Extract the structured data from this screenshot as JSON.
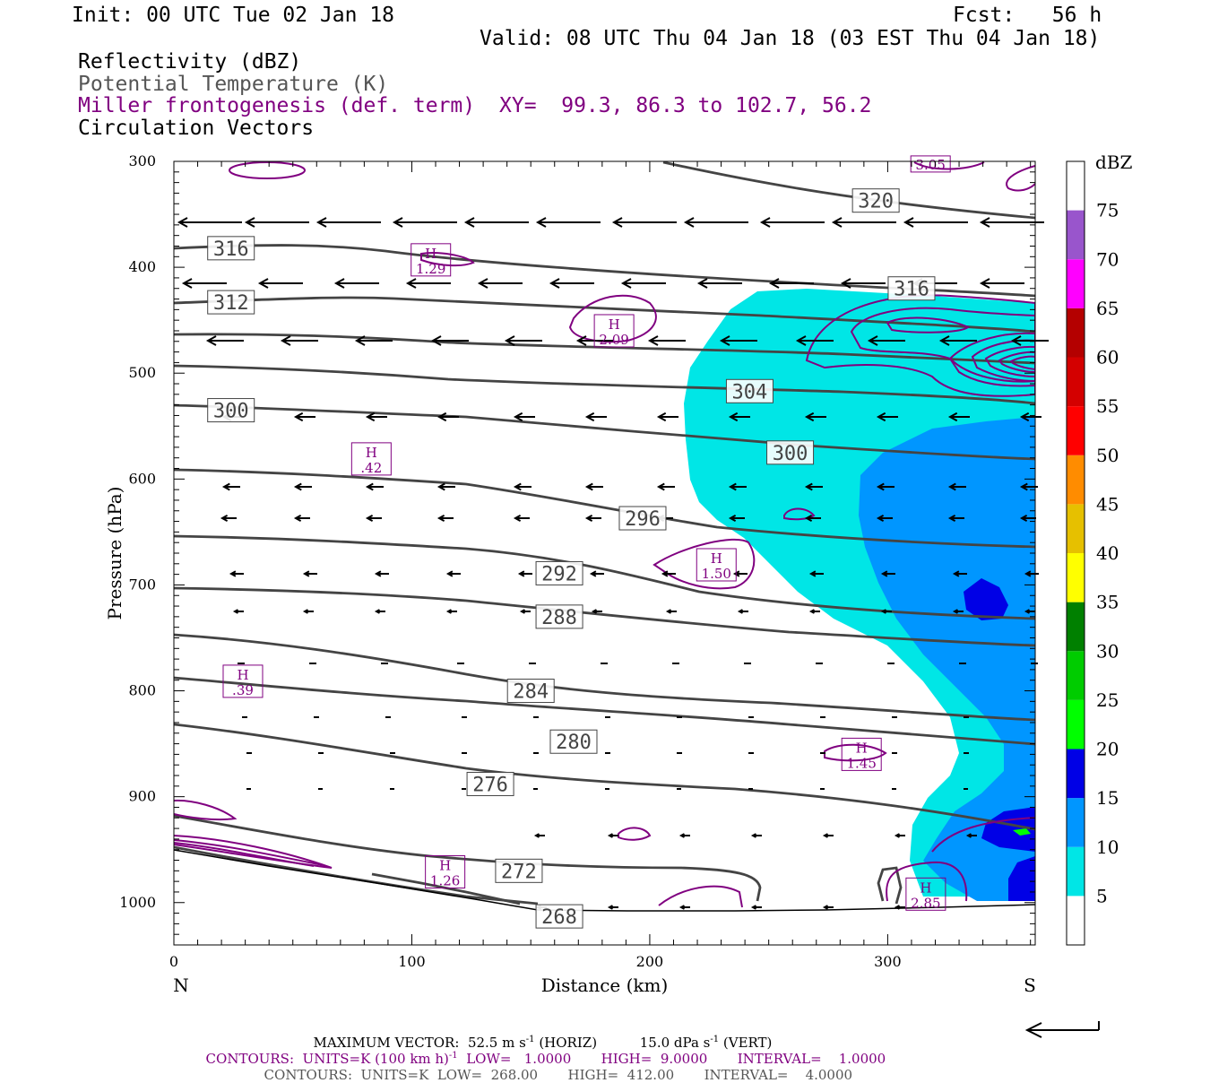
{
  "header": {
    "init": "Init: 00 UTC Tue 02 Jan 18",
    "fcst": "Fcst:   56 h",
    "valid": "Valid: 08 UTC Thu 04 Jan 18 (03 EST Thu 04 Jan 18)",
    "fields": [
      {
        "text": "Reflectivity (dBZ)",
        "color": "#000000"
      },
      {
        "text": "Potential Temperature (K)",
        "color": "#555555"
      },
      {
        "text": "Miller frontogenesis (def. term)",
        "color": "#800080"
      },
      {
        "text": "Circulation Vectors",
        "color": "#000000"
      }
    ],
    "xy": "XY=  99.3, 86.3 to 102.7, 56.2"
  },
  "chart_data": {
    "type": "cross-section",
    "xlabel": "Distance (km)",
    "ylabel": "Pressure (hPa)",
    "xlim": [
      0,
      362
    ],
    "ylim": [
      1040,
      300
    ],
    "xticks": [
      0,
      100,
      200,
      300
    ],
    "yticks": [
      300,
      400,
      500,
      600,
      700,
      800,
      900,
      1000
    ],
    "x_endpoints": {
      "left": "N",
      "right": "S"
    },
    "colorbar": {
      "units": "dBZ",
      "levels": [
        5,
        10,
        15,
        20,
        25,
        30,
        35,
        40,
        45,
        50,
        55,
        60,
        65,
        70,
        75
      ],
      "colors": [
        "#ffffff",
        "#00e6e6",
        "#0096ff",
        "#0000e6",
        "#00ff00",
        "#00cc00",
        "#008000",
        "#ffff00",
        "#e6c000",
        "#ff8c00",
        "#ff0000",
        "#d40000",
        "#b40000",
        "#ff00ff",
        "#9955cc"
      ]
    },
    "theta_labels": [
      {
        "value": "320",
        "x": 295,
        "p": 337
      },
      {
        "value": "316",
        "x": 24,
        "p": 382
      },
      {
        "value": "316",
        "x": 310,
        "p": 420
      },
      {
        "value": "312",
        "x": 24,
        "p": 433
      },
      {
        "value": "304",
        "x": 242,
        "p": 517
      },
      {
        "value": "300",
        "x": 24,
        "p": 535
      },
      {
        "value": "300",
        "x": 259,
        "p": 575
      },
      {
        "value": "296",
        "x": 197,
        "p": 637
      },
      {
        "value": "292",
        "x": 162,
        "p": 689
      },
      {
        "value": "288",
        "x": 162,
        "p": 730
      },
      {
        "value": "284",
        "x": 150,
        "p": 800
      },
      {
        "value": "280",
        "x": 168,
        "p": 848
      },
      {
        "value": "276",
        "x": 133,
        "p": 888
      },
      {
        "value": "272",
        "x": 145,
        "p": 970
      },
      {
        "value": "268",
        "x": 162,
        "p": 1013
      }
    ],
    "fronto_maxima": [
      {
        "label": "H",
        "value": "1.29",
        "x": 108,
        "p": 393
      },
      {
        "label": "H",
        "value": "2.09",
        "x": 185,
        "p": 460
      },
      {
        "label": "H",
        "value": ".42",
        "x": 83,
        "p": 581
      },
      {
        "label": "H",
        "value": "1.50",
        "x": 228,
        "p": 681
      },
      {
        "label": "H",
        "value": ".39",
        "x": 29,
        "p": 791
      },
      {
        "label": "H",
        "value": "1.45",
        "x": 289,
        "p": 860
      },
      {
        "label": "H",
        "value": "1.26",
        "x": 114,
        "p": 971
      },
      {
        "label": "H",
        "value": "2.85",
        "x": 316,
        "p": 992
      },
      {
        "label": "",
        "value": "3.05",
        "x": 318,
        "p": 305
      }
    ]
  },
  "footer": {
    "max_vector_label": "MAXIMUM VECTOR:",
    "max_vector_horiz": "52.5 m s",
    "horiz_suffix": "(HORIZ)",
    "max_vector_vert": "15.0 dPa s",
    "vert_suffix": "(VERT)",
    "exp": "-1",
    "c1_prefix": "CONTOURS:  UNITS=K (100 km h)",
    "c1_low": "LOW=   1.0000",
    "c1_high": "HIGH=  9.0000",
    "c1_interval": "INTERVAL=    1.0000",
    "c2_prefix": "CONTOURS:  UNITS=K  LOW=  268.00",
    "c2_high": "HIGH=  412.00",
    "c2_interval": "INTERVAL=    4.0000"
  }
}
